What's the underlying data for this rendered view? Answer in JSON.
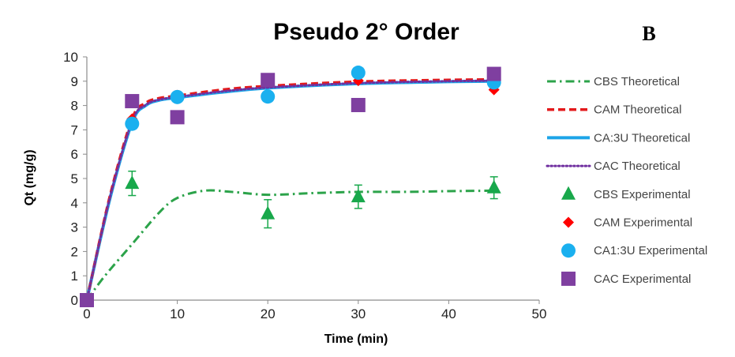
{
  "chart_data": {
    "type": "scatter",
    "title": "Pseudo 2° Order",
    "panel_label": "B",
    "xlabel": "Time (min)",
    "ylabel": "Qt (mg/g)",
    "xlim": [
      0,
      50
    ],
    "ylim": [
      0,
      10
    ],
    "xticks": [
      "0",
      "10",
      "20",
      "30",
      "40",
      "50"
    ],
    "yticks": [
      "0",
      "1",
      "2",
      "3",
      "4",
      "5",
      "6",
      "7",
      "8",
      "9",
      "10"
    ],
    "grid": false,
    "legend_position": "right",
    "series": [
      {
        "name": "CBS Theoretical",
        "kind": "line",
        "style": "dashdot",
        "color": "#2ca34a",
        "points": [
          [
            0,
            0
          ],
          [
            2,
            1.0
          ],
          [
            5,
            2.3
          ],
          [
            8,
            3.6
          ],
          [
            10,
            4.2
          ],
          [
            13,
            4.5
          ],
          [
            16,
            4.45
          ],
          [
            20,
            4.33
          ],
          [
            25,
            4.4
          ],
          [
            30,
            4.45
          ],
          [
            35,
            4.45
          ],
          [
            40,
            4.48
          ],
          [
            45,
            4.5
          ]
        ]
      },
      {
        "name": "CAM Theoretical",
        "kind": "line",
        "style": "dashed",
        "color": "#e31a1c",
        "points": [
          [
            0,
            0
          ],
          [
            2.5,
            4.2
          ],
          [
            5,
            7.45
          ],
          [
            6.5,
            8.1
          ],
          [
            8,
            8.3
          ],
          [
            10,
            8.4
          ],
          [
            15,
            8.65
          ],
          [
            20,
            8.8
          ],
          [
            30,
            8.98
          ],
          [
            40,
            9.05
          ],
          [
            45,
            9.07
          ]
        ]
      },
      {
        "name": "CA:3U Theoretical",
        "kind": "line",
        "style": "solid",
        "color": "#1ca4e8",
        "points": [
          [
            0,
            0
          ],
          [
            2.5,
            4.1
          ],
          [
            5,
            7.3
          ],
          [
            6.5,
            8.0
          ],
          [
            8,
            8.22
          ],
          [
            10,
            8.33
          ],
          [
            15,
            8.55
          ],
          [
            20,
            8.72
          ],
          [
            30,
            8.9
          ],
          [
            40,
            8.98
          ],
          [
            45,
            9.0
          ]
        ]
      },
      {
        "name": "CAC Theoretical",
        "kind": "line",
        "style": "dotted",
        "color": "#7030a0",
        "points": [
          [
            0,
            0
          ],
          [
            2.5,
            4.15
          ],
          [
            5,
            7.35
          ],
          [
            6.5,
            8.02
          ],
          [
            8,
            8.24
          ],
          [
            10,
            8.35
          ],
          [
            15,
            8.58
          ],
          [
            20,
            8.74
          ],
          [
            30,
            8.92
          ],
          [
            40,
            9.0
          ],
          [
            45,
            9.02
          ]
        ]
      },
      {
        "name": "CBS Experimental",
        "kind": "marker",
        "marker": "triangle",
        "color": "#18a84b",
        "x": [
          5,
          20,
          30,
          45
        ],
        "y": [
          4.8,
          3.55,
          4.25,
          4.62
        ],
        "err": [
          0.5,
          0.58,
          0.48,
          0.45
        ]
      },
      {
        "name": "CAM Experimental",
        "kind": "marker",
        "marker": "diamond",
        "color": "#ff0000",
        "x": [
          5,
          10,
          20,
          30,
          45
        ],
        "y": [
          7.45,
          8.42,
          9.0,
          9.02,
          8.65
        ]
      },
      {
        "name": "CA1:3U Experimental",
        "kind": "marker",
        "marker": "circle",
        "color": "#1ab0ef",
        "x": [
          0,
          5,
          10,
          20,
          30,
          45
        ],
        "y": [
          0,
          7.25,
          8.35,
          8.37,
          9.35,
          8.95
        ]
      },
      {
        "name": "CAC Experimental",
        "kind": "marker",
        "marker": "square",
        "color": "#7f3fa0",
        "x": [
          0,
          5,
          10,
          20,
          30,
          45
        ],
        "y": [
          0,
          8.18,
          7.52,
          9.05,
          8.02,
          9.3
        ]
      }
    ]
  }
}
